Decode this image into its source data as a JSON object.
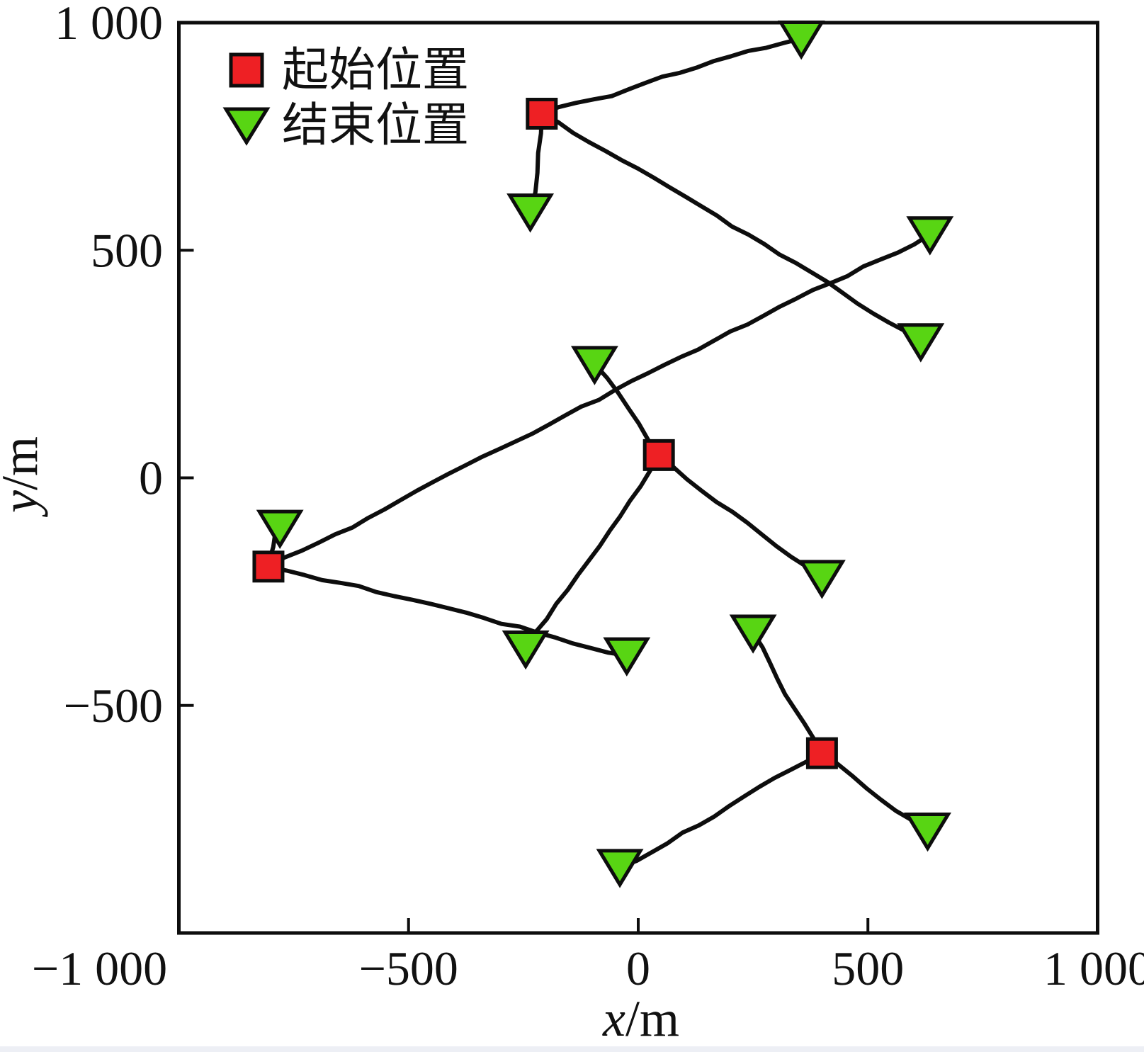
{
  "figure": {
    "background": "#ffffff",
    "bottom_strip_color": "#edeff5"
  },
  "chart_data": {
    "type": "scatter",
    "subtype": "start-end-trajectories",
    "title": "",
    "xlabel_var": "x",
    "xlabel_unit": "/m",
    "ylabel_var": "y",
    "ylabel_unit": "/m",
    "xlim": [
      -1000,
      1000
    ],
    "ylim": [
      -1000,
      1000
    ],
    "grid": false,
    "x_ticks": [
      {
        "value": -1000,
        "label": "−1 000"
      },
      {
        "value": -500,
        "label": "−500"
      },
      {
        "value": 0,
        "label": "0"
      },
      {
        "value": 500,
        "label": "500"
      },
      {
        "value": 1000,
        "label": "1 000"
      }
    ],
    "y_ticks": [
      {
        "value": 1000,
        "label": "1 000"
      },
      {
        "value": 500,
        "label": "500"
      },
      {
        "value": 0,
        "label": "0"
      },
      {
        "value": -500,
        "label": "−500"
      }
    ],
    "legend": {
      "position": "top-left-inside",
      "items": [
        {
          "label": "起始位置",
          "marker": "square",
          "color": "#ee2024"
        },
        {
          "label": "结束位置",
          "marker": "triangle-down",
          "color": "#58d513"
        }
      ]
    },
    "colors": {
      "start_marker": "#ee2024",
      "end_marker": "#58d513",
      "marker_stroke": "#0d0d0d",
      "trajectory": "#0d0d0d",
      "axis": "#0d0d0d"
    },
    "start_positions": [
      {
        "x": -210,
        "y": 800
      },
      {
        "x": 45,
        "y": 50
      },
      {
        "x": -805,
        "y": -195
      },
      {
        "x": 400,
        "y": -605
      }
    ],
    "end_positions": [
      {
        "x": 355,
        "y": 965
      },
      {
        "x": -235,
        "y": 585
      },
      {
        "x": 635,
        "y": 535
      },
      {
        "x": 615,
        "y": 300
      },
      {
        "x": -95,
        "y": 250
      },
      {
        "x": -780,
        "y": -110
      },
      {
        "x": 400,
        "y": -220
      },
      {
        "x": -245,
        "y": -375
      },
      {
        "x": -25,
        "y": -390
      },
      {
        "x": 250,
        "y": -340
      },
      {
        "x": 630,
        "y": -775
      },
      {
        "x": -40,
        "y": -855
      }
    ],
    "trajectories": [
      {
        "start": 0,
        "end": 0
      },
      {
        "start": 0,
        "end": 1
      },
      {
        "start": 0,
        "end": 3
      },
      {
        "start": 1,
        "end": 4
      },
      {
        "start": 1,
        "end": 6
      },
      {
        "start": 1,
        "end": 7
      },
      {
        "start": 2,
        "end": 5
      },
      {
        "start": 2,
        "end": 2
      },
      {
        "start": 2,
        "end": 8
      },
      {
        "start": 3,
        "end": 9
      },
      {
        "start": 3,
        "end": 10
      },
      {
        "start": 3,
        "end": 11
      }
    ]
  }
}
